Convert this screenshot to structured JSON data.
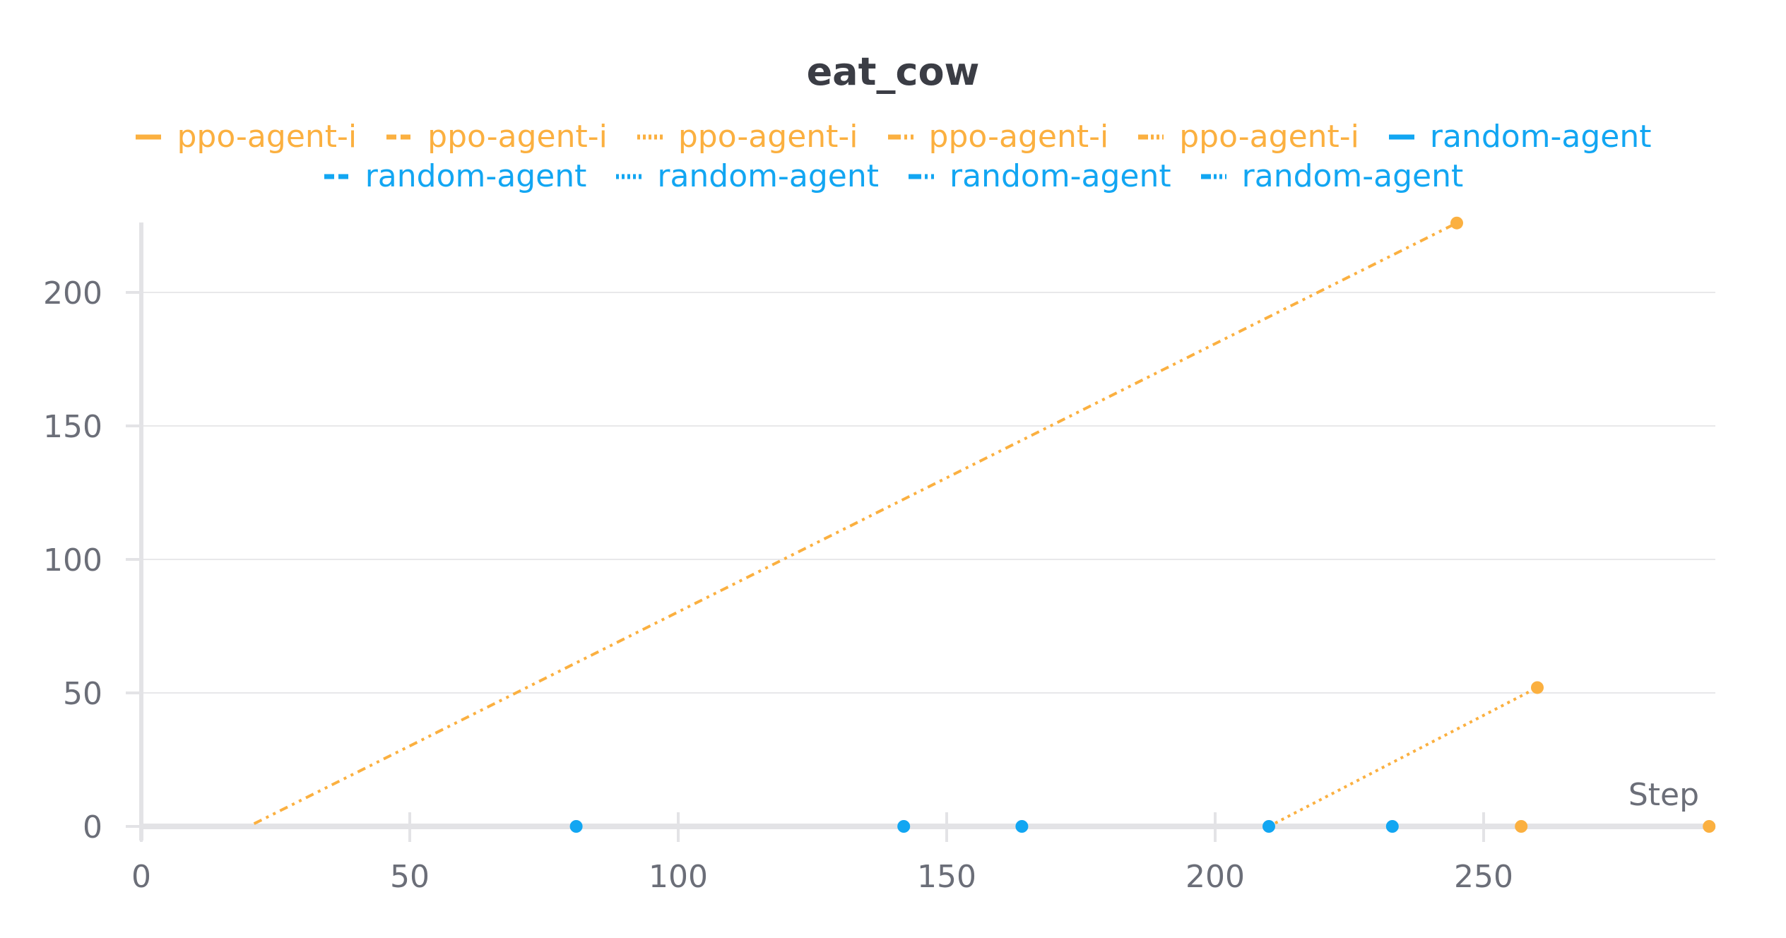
{
  "chart_data": {
    "type": "line",
    "title": "eat_cow",
    "xlabel": "Step",
    "ylabel": "",
    "xlim": [
      0,
      293
    ],
    "ylim": [
      0,
      226
    ],
    "xticks": [
      0,
      50,
      100,
      150,
      200,
      250
    ],
    "yticks": [
      0,
      50,
      100,
      150,
      200
    ],
    "grid": true,
    "legend_position": "top",
    "series": [
      {
        "name": "ppo-agent-i",
        "color": "#fbb040",
        "dash": "solid",
        "points": []
      },
      {
        "name": "ppo-agent-i",
        "color": "#fbb040",
        "dash": "dashed",
        "points": [
          [
            257,
            0
          ]
        ]
      },
      {
        "name": "ppo-agent-i",
        "color": "#fbb040",
        "dash": "dotted",
        "points": [
          [
            210,
            0
          ],
          [
            260,
            52
          ]
        ]
      },
      {
        "name": "ppo-agent-i",
        "color": "#fbb040",
        "dash": "dashdot",
        "points": [
          [
            292,
            0
          ]
        ]
      },
      {
        "name": "ppo-agent-i",
        "color": "#fbb040",
        "dash": "dashdotdot",
        "points": [
          [
            21,
            1
          ],
          [
            245,
            226
          ]
        ]
      },
      {
        "name": "random-agent",
        "color": "#12a6f2",
        "dash": "solid",
        "points": [
          [
            81,
            0
          ]
        ]
      },
      {
        "name": "random-agent",
        "color": "#12a6f2",
        "dash": "dashed",
        "points": [
          [
            142,
            0
          ]
        ]
      },
      {
        "name": "random-agent",
        "color": "#12a6f2",
        "dash": "dotted",
        "points": [
          [
            164,
            0
          ]
        ]
      },
      {
        "name": "random-agent",
        "color": "#12a6f2",
        "dash": "dashdot",
        "points": [
          [
            210,
            0
          ]
        ]
      },
      {
        "name": "random-agent",
        "color": "#12a6f2",
        "dash": "dashdotdot",
        "points": [
          [
            233,
            0
          ]
        ]
      }
    ]
  }
}
